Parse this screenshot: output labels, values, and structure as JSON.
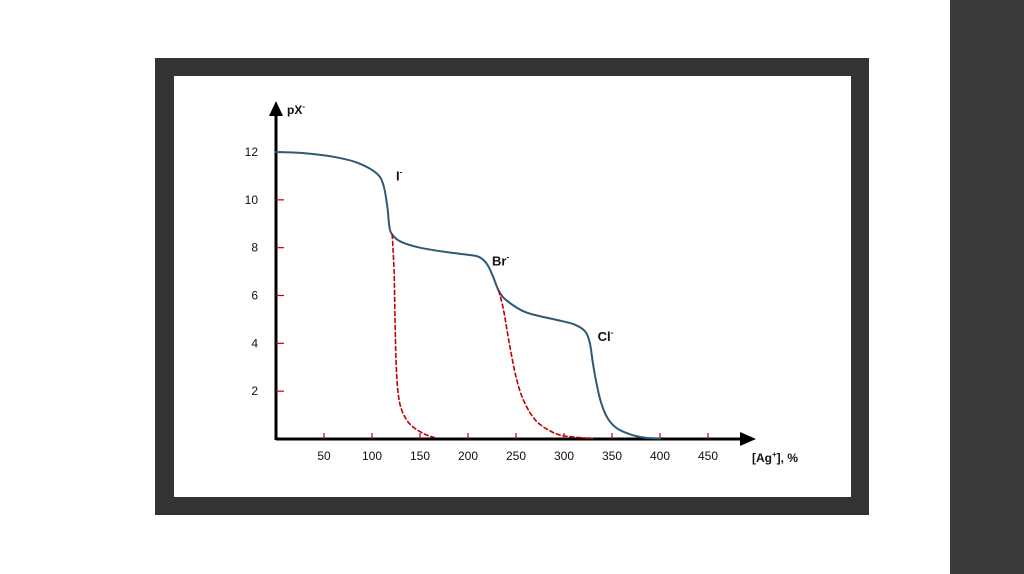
{
  "colors": {
    "frame": "#333333",
    "sidebar": "#3a3a3a",
    "curve": "#2e5a7a",
    "dashed": "#c00000",
    "tick": "#c00000",
    "axis": "#000000"
  },
  "chart_data": {
    "type": "line",
    "y_axis_title": "pX",
    "y_axis_title_sup": "-",
    "x_axis_title_prefix": "[Ag",
    "x_axis_title_sup": "+",
    "x_axis_title_suffix": "], %",
    "xlim": [
      0,
      480
    ],
    "ylim": [
      0,
      13
    ],
    "x_ticks": [
      50,
      100,
      150,
      200,
      250,
      300,
      350,
      400,
      450
    ],
    "y_ticks": [
      2,
      4,
      6,
      8,
      10,
      12
    ],
    "grid": false,
    "series": [
      {
        "style": "solid",
        "points": [
          [
            0,
            12.0
          ],
          [
            30,
            11.95
          ],
          [
            60,
            11.8
          ],
          [
            85,
            11.55
          ],
          [
            105,
            11.1
          ],
          [
            112,
            10.6
          ],
          [
            116,
            9.7
          ],
          [
            118,
            8.9
          ],
          [
            121,
            8.55
          ],
          [
            130,
            8.25
          ],
          [
            150,
            8.0
          ],
          [
            180,
            7.8
          ],
          [
            200,
            7.7
          ],
          [
            212,
            7.6
          ],
          [
            220,
            7.3
          ],
          [
            226,
            6.8
          ],
          [
            232,
            6.2
          ],
          [
            240,
            5.8
          ],
          [
            260,
            5.3
          ],
          [
            290,
            5.0
          ],
          [
            310,
            4.8
          ],
          [
            322,
            4.5
          ],
          [
            327,
            4.0
          ],
          [
            330,
            3.2
          ],
          [
            333,
            2.5
          ],
          [
            338,
            1.6
          ],
          [
            345,
            0.9
          ],
          [
            355,
            0.45
          ],
          [
            370,
            0.18
          ],
          [
            385,
            0.05
          ],
          [
            400,
            0.02
          ]
        ]
      },
      {
        "style": "dashed",
        "points": [
          [
            121,
            8.55
          ],
          [
            123,
            7.0
          ],
          [
            124,
            5.0
          ],
          [
            125,
            3.3
          ],
          [
            127,
            2.0
          ],
          [
            131,
            1.2
          ],
          [
            140,
            0.6
          ],
          [
            155,
            0.2
          ],
          [
            168,
            0.03
          ]
        ]
      },
      {
        "style": "dashed",
        "points": [
          [
            232,
            6.2
          ],
          [
            237,
            5.4
          ],
          [
            243,
            4.0
          ],
          [
            250,
            2.6
          ],
          [
            258,
            1.6
          ],
          [
            270,
            0.8
          ],
          [
            285,
            0.35
          ],
          [
            300,
            0.13
          ],
          [
            330,
            0.02
          ]
        ]
      }
    ],
    "annotations": [
      {
        "text": "I",
        "sup": "-",
        "x": 125,
        "y": 10.8
      },
      {
        "text": "Br",
        "sup": "-",
        "x": 225,
        "y": 7.25
      },
      {
        "text": "Cl",
        "sup": "-",
        "x": 335,
        "y": 4.1
      }
    ]
  }
}
